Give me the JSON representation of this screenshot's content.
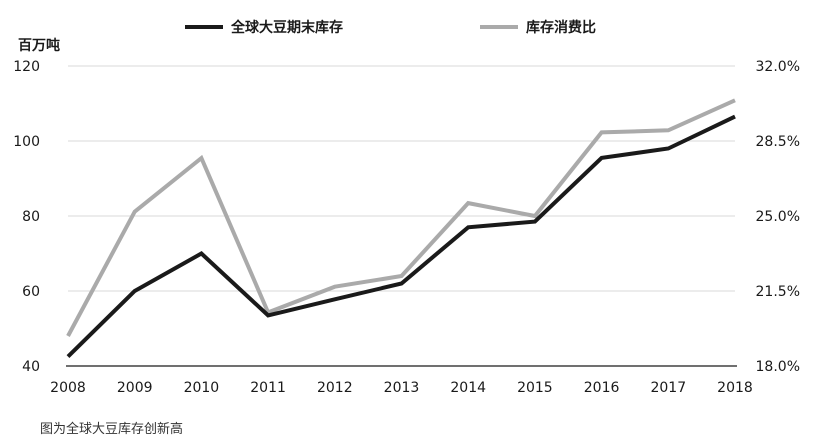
{
  "chart_data": {
    "type": "line",
    "x": [
      "2008",
      "2009",
      "2010",
      "2011",
      "2012",
      "2013",
      "2014",
      "2015",
      "2016",
      "2017",
      "2018"
    ],
    "series": [
      {
        "name": "全球大豆期末库存",
        "axis": "left",
        "color": "#1a1a1a",
        "values": [
          42.5,
          60,
          70,
          53.5,
          57.8,
          62,
          77,
          78.5,
          95.5,
          98,
          106.5
        ]
      },
      {
        "name": "库存消费比",
        "axis": "right",
        "color": "#aaaaaa",
        "values": [
          19.4,
          25.2,
          27.7,
          20.5,
          21.7,
          22.2,
          25.6,
          25.0,
          28.9,
          29.0,
          30.4
        ]
      }
    ],
    "y_left": {
      "label": "百万吨",
      "ylim": [
        40,
        120
      ],
      "ticks": [
        "40",
        "60",
        "80",
        "100",
        "120"
      ]
    },
    "y_right": {
      "ylim": [
        18,
        32
      ],
      "ticks": [
        "18.0%",
        "21.5%",
        "25.0%",
        "28.5%",
        "32.0%"
      ]
    },
    "grid": "horizontal",
    "legend_position": "top"
  },
  "caption": "图为全球大豆库存创新高"
}
